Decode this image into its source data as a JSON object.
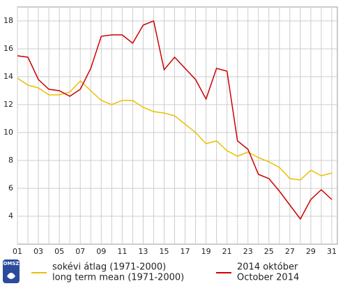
{
  "chart_data": {
    "type": "line",
    "categories": [
      "01",
      null,
      "03",
      null,
      "05",
      null,
      "07",
      null,
      "09",
      null,
      "11",
      null,
      "13",
      null,
      "15",
      null,
      "17",
      null,
      "19",
      null,
      "21",
      null,
      "23",
      null,
      "25",
      null,
      "27",
      null,
      "29",
      null,
      "31"
    ],
    "series": [
      {
        "name": "sokévi átlag (1971-2000)",
        "name_en": "long term mean (1971-2000)",
        "color": "#e8c000",
        "values": [
          13.9,
          13.4,
          13.2,
          12.7,
          12.7,
          12.9,
          13.7,
          13.0,
          12.3,
          12.0,
          12.3,
          12.3,
          11.8,
          11.5,
          11.4,
          11.2,
          10.6,
          10.0,
          9.2,
          9.4,
          8.7,
          8.3,
          8.6,
          8.2,
          7.9,
          7.5,
          6.7,
          6.6,
          7.3,
          6.9,
          7.1
        ]
      },
      {
        "name": "2014 október",
        "name_en": "October 2014",
        "color": "#cc0000",
        "values": [
          15.5,
          15.4,
          13.8,
          13.1,
          13.0,
          12.6,
          13.1,
          14.6,
          16.9,
          17.0,
          17.0,
          16.4,
          17.7,
          18.0,
          14.5,
          15.4,
          14.6,
          13.8,
          12.4,
          14.6,
          14.4,
          9.4,
          8.8,
          7.0,
          6.7,
          5.8,
          4.8,
          3.8,
          5.2,
          5.9,
          5.2
        ]
      }
    ],
    "ylim": [
      2,
      19
    ],
    "yticks": [
      4,
      6,
      8,
      10,
      12,
      14,
      16,
      18
    ],
    "grid": true,
    "logo": "OMSZ"
  }
}
